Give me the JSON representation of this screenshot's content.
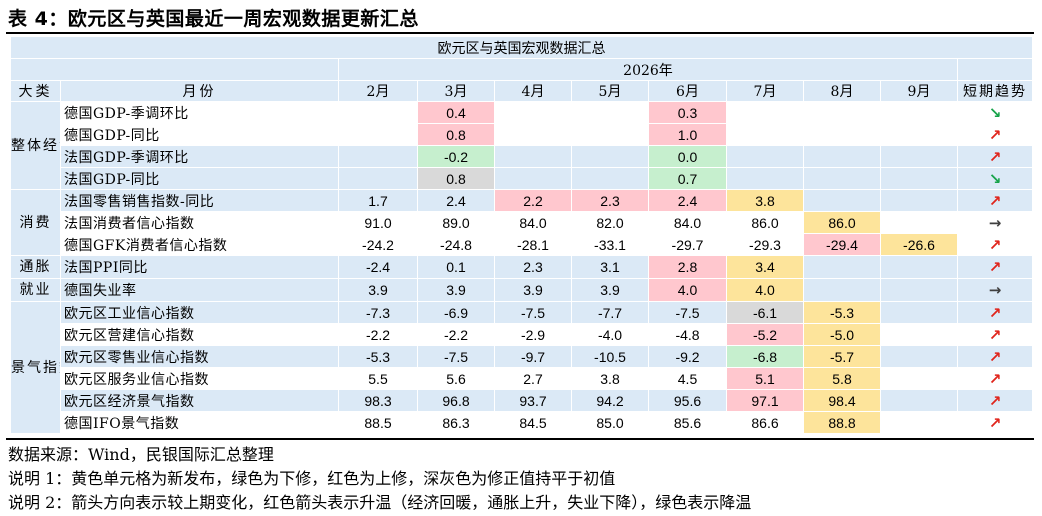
{
  "title": "表 4：欧元区与英国最近一周宏观数据更新汇总",
  "header": {
    "main_title": "欧元区与英国宏观数据汇总",
    "year": "2026年",
    "col_category": "大类",
    "col_month": "月份",
    "months": [
      "2月",
      "3月",
      "4月",
      "5月",
      "6月",
      "7月",
      "8月",
      "9月"
    ],
    "col_trend": "短期趋势"
  },
  "colors": {
    "header_blue": "#dbe9f6",
    "body_blue": "#dbe9f6",
    "white": "#ffffff",
    "yellow": "#fde49b",
    "green": "#c6efce",
    "red": "#ffc7ce",
    "gray": "#d9d9d9",
    "arrow_red": "#e0241b",
    "arrow_green": "#17a34a",
    "arrow_gray": "#404040"
  },
  "rows": [
    {
      "category": "整体经济",
      "indicator": "德国GDP-季调环比",
      "indent": true,
      "bg": "white",
      "cells": [
        {
          "v": ""
        },
        {
          "v": "0.4",
          "c": "red"
        },
        {
          "v": ""
        },
        {
          "v": ""
        },
        {
          "v": "0.3",
          "c": "red"
        },
        {
          "v": ""
        },
        {
          "v": ""
        },
        {
          "v": ""
        }
      ],
      "trend": "↘",
      "trend_color": "green"
    },
    {
      "category": "",
      "indicator": "德国GDP-同比",
      "indent": true,
      "bg": "white",
      "cells": [
        {
          "v": ""
        },
        {
          "v": "0.8",
          "c": "red"
        },
        {
          "v": ""
        },
        {
          "v": ""
        },
        {
          "v": "1.0",
          "c": "red"
        },
        {
          "v": ""
        },
        {
          "v": ""
        },
        {
          "v": ""
        }
      ],
      "trend": "↗",
      "trend_color": "red"
    },
    {
      "category": "",
      "indicator": "法国GDP-季调环比",
      "indent": true,
      "bg": "blue",
      "cells": [
        {
          "v": ""
        },
        {
          "v": "-0.2",
          "c": "green"
        },
        {
          "v": ""
        },
        {
          "v": ""
        },
        {
          "v": "0.0",
          "c": "green"
        },
        {
          "v": ""
        },
        {
          "v": ""
        },
        {
          "v": ""
        }
      ],
      "trend": "↗",
      "trend_color": "red"
    },
    {
      "category": "",
      "indicator": "法国GDP-同比",
      "indent": true,
      "bg": "blue",
      "cells": [
        {
          "v": ""
        },
        {
          "v": "0.8",
          "c": "gray"
        },
        {
          "v": ""
        },
        {
          "v": ""
        },
        {
          "v": "0.7",
          "c": "green"
        },
        {
          "v": ""
        },
        {
          "v": ""
        },
        {
          "v": ""
        }
      ],
      "trend": "↘",
      "trend_color": "green"
    },
    {
      "category": "消费",
      "indicator": "法国零售销售指数-同比",
      "indent": true,
      "bg": "blue",
      "cells": [
        {
          "v": "1.7"
        },
        {
          "v": "2.4"
        },
        {
          "v": "2.2",
          "c": "red"
        },
        {
          "v": "2.3",
          "c": "red"
        },
        {
          "v": "2.4",
          "c": "red"
        },
        {
          "v": "3.8",
          "c": "yellow"
        },
        {
          "v": ""
        },
        {
          "v": ""
        }
      ],
      "trend": "↗",
      "trend_color": "red"
    },
    {
      "category": "",
      "indicator": "法国消费者信心指数",
      "indent": false,
      "bg": "white",
      "cells": [
        {
          "v": "91.0"
        },
        {
          "v": "89.0"
        },
        {
          "v": "84.0"
        },
        {
          "v": "82.0"
        },
        {
          "v": "84.0"
        },
        {
          "v": "86.0"
        },
        {
          "v": "86.0",
          "c": "yellow"
        },
        {
          "v": ""
        }
      ],
      "trend": "→",
      "trend_color": "gray"
    },
    {
      "category": "",
      "indicator": "德国GFK消费者信心指数",
      "indent": false,
      "bg": "white",
      "cells": [
        {
          "v": "-24.2"
        },
        {
          "v": "-24.8"
        },
        {
          "v": "-28.1"
        },
        {
          "v": "-33.1"
        },
        {
          "v": "-29.7"
        },
        {
          "v": "-29.3"
        },
        {
          "v": "-29.4",
          "c": "red"
        },
        {
          "v": "-26.6",
          "c": "yellow"
        }
      ],
      "trend": "↗",
      "trend_color": "red"
    },
    {
      "category": "通胀",
      "indicator": "法国PPI同比",
      "indent": true,
      "bg": "blue",
      "cells": [
        {
          "v": "-2.4"
        },
        {
          "v": "0.1"
        },
        {
          "v": "2.3"
        },
        {
          "v": "3.1"
        },
        {
          "v": "2.8",
          "c": "red"
        },
        {
          "v": "3.4",
          "c": "yellow"
        },
        {
          "v": ""
        },
        {
          "v": ""
        }
      ],
      "trend": "↗",
      "trend_color": "red"
    },
    {
      "category": "就业",
      "indicator": "德国失业率",
      "indent": true,
      "bg": "blue",
      "cells": [
        {
          "v": "3.9"
        },
        {
          "v": "3.9"
        },
        {
          "v": "3.9"
        },
        {
          "v": "3.9"
        },
        {
          "v": "4.0",
          "c": "red"
        },
        {
          "v": "4.0",
          "c": "yellow"
        },
        {
          "v": ""
        },
        {
          "v": ""
        }
      ],
      "trend": "→",
      "trend_color": "gray"
    },
    {
      "category": "景气指数",
      "indicator": "欧元区工业信心指数",
      "indent": false,
      "bg": "blue",
      "cells": [
        {
          "v": "-7.3"
        },
        {
          "v": "-6.9"
        },
        {
          "v": "-7.5"
        },
        {
          "v": "-7.7"
        },
        {
          "v": "-7.5"
        },
        {
          "v": "-6.1",
          "c": "gray"
        },
        {
          "v": "-5.3",
          "c": "yellow"
        },
        {
          "v": ""
        }
      ],
      "trend": "↗",
      "trend_color": "red"
    },
    {
      "category": "",
      "indicator": "欧元区营建信心指数",
      "indent": false,
      "bg": "white",
      "cells": [
        {
          "v": "-2.2"
        },
        {
          "v": "-2.2"
        },
        {
          "v": "-2.9"
        },
        {
          "v": "-4.0"
        },
        {
          "v": "-4.8"
        },
        {
          "v": "-5.2",
          "c": "red"
        },
        {
          "v": "-5.0",
          "c": "yellow"
        },
        {
          "v": ""
        }
      ],
      "trend": "↗",
      "trend_color": "red"
    },
    {
      "category": "",
      "indicator": "欧元区零售业信心指数",
      "indent": false,
      "bg": "blue",
      "cells": [
        {
          "v": "-5.3"
        },
        {
          "v": "-7.5"
        },
        {
          "v": "-9.7"
        },
        {
          "v": "-10.5"
        },
        {
          "v": "-9.2"
        },
        {
          "v": "-6.8",
          "c": "green"
        },
        {
          "v": "-5.7",
          "c": "yellow"
        },
        {
          "v": ""
        }
      ],
      "trend": "↗",
      "trend_color": "red"
    },
    {
      "category": "",
      "indicator": "欧元区服务业信心指数",
      "indent": false,
      "bg": "white",
      "cells": [
        {
          "v": "5.5"
        },
        {
          "v": "5.6"
        },
        {
          "v": "2.7"
        },
        {
          "v": "3.8"
        },
        {
          "v": "4.5"
        },
        {
          "v": "5.1",
          "c": "red"
        },
        {
          "v": "5.8",
          "c": "yellow"
        },
        {
          "v": ""
        }
      ],
      "trend": "↗",
      "trend_color": "red"
    },
    {
      "category": "",
      "indicator": "欧元区经济景气指数",
      "indent": false,
      "bg": "blue",
      "cells": [
        {
          "v": "98.3"
        },
        {
          "v": "96.8"
        },
        {
          "v": "93.7"
        },
        {
          "v": "94.2"
        },
        {
          "v": "95.6"
        },
        {
          "v": "97.1",
          "c": "red"
        },
        {
          "v": "98.4",
          "c": "yellow"
        },
        {
          "v": ""
        }
      ],
      "trend": "↗",
      "trend_color": "red"
    },
    {
      "category": "",
      "indicator": "德国IFO景气指数",
      "indent": true,
      "bg": "white",
      "cells": [
        {
          "v": "88.5"
        },
        {
          "v": "86.3"
        },
        {
          "v": "84.5"
        },
        {
          "v": "85.0"
        },
        {
          "v": "85.6"
        },
        {
          "v": "86.6"
        },
        {
          "v": "88.8",
          "c": "yellow"
        },
        {
          "v": ""
        }
      ],
      "trend": "↗",
      "trend_color": "red"
    }
  ],
  "category_spans": [
    {
      "label": "整体经济",
      "start": 0,
      "span": 4
    },
    {
      "label": "消费",
      "start": 4,
      "span": 3
    },
    {
      "label": "通胀",
      "start": 7,
      "span": 1
    },
    {
      "label": "就业",
      "start": 8,
      "span": 1
    },
    {
      "label": "景气指数",
      "start": 9,
      "span": 6
    }
  ],
  "notes": {
    "source": "数据来源：Wind，民银国际汇总整理",
    "note1": "说明 1：黄色单元格为新发布，绿色为下修，红色为上修，深灰色为修正值持平于初值",
    "note2": "说明 2：箭头方向表示较上期变化，红色箭头表示升温（经济回暖，通胀上升，失业下降），绿色表示降温"
  }
}
